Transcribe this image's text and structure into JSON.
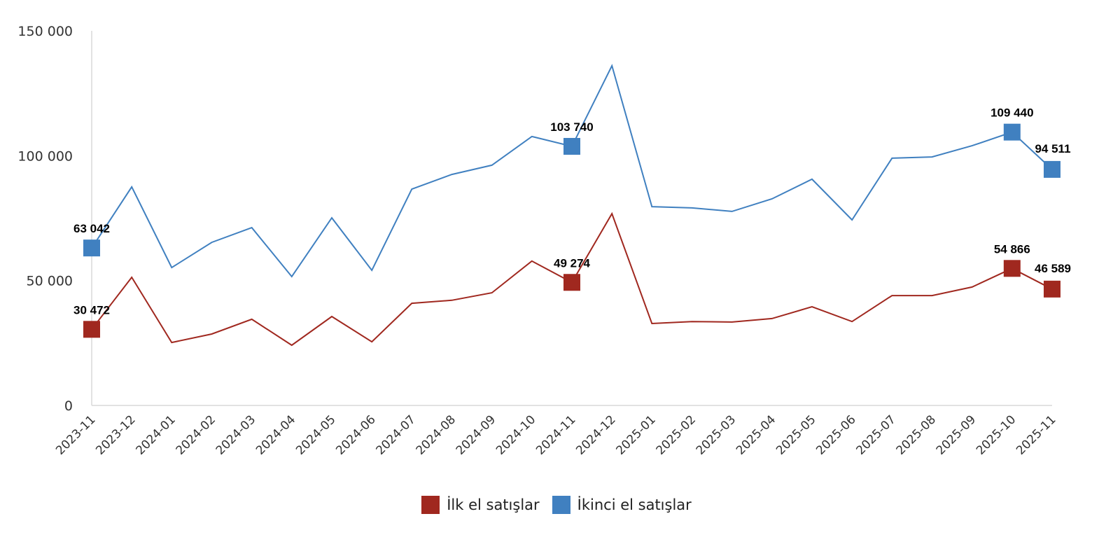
{
  "chart_data": {
    "type": "line",
    "title": "",
    "xlabel": "",
    "ylabel": "",
    "ylim": [
      0,
      150000
    ],
    "yticks": [
      0,
      50000,
      100000,
      150000
    ],
    "ytick_labels": [
      "0",
      "50 000",
      "100 000",
      "150 000"
    ],
    "grid": false,
    "legend_position": "bottom",
    "categories": [
      "2023-11",
      "2023-12",
      "2024-01",
      "2024-02",
      "2024-03",
      "2024-04",
      "2024-05",
      "2024-06",
      "2024-07",
      "2024-08",
      "2024-09",
      "2024-10",
      "2024-11",
      "2024-12",
      "2025-01",
      "2025-02",
      "2025-03",
      "2025-04",
      "2025-05",
      "2025-06",
      "2025-07",
      "2025-08",
      "2025-09",
      "2025-10",
      "2025-11"
    ],
    "series": [
      {
        "name": "İlk el satışlar",
        "color": "#a0281f",
        "values": [
          30472,
          51300,
          25200,
          28600,
          34500,
          24100,
          35600,
          25500,
          40900,
          42100,
          45100,
          57800,
          49274,
          76800,
          32800,
          33600,
          33400,
          34800,
          39500,
          33600,
          44000,
          44000,
          47400,
          54866,
          46589
        ],
        "labeled_points": [
          {
            "index": 0,
            "label": "30 472"
          },
          {
            "index": 12,
            "label": "49 274"
          },
          {
            "index": 23,
            "label": "54 866"
          },
          {
            "index": 24,
            "label": "46 589"
          }
        ]
      },
      {
        "name": "İkinci el satışlar",
        "color": "#4080c0",
        "values": [
          63042,
          87500,
          55200,
          65300,
          71200,
          51600,
          75100,
          54100,
          86600,
          92500,
          96200,
          107700,
          103740,
          136000,
          79600,
          79100,
          77700,
          82700,
          90600,
          74300,
          99000,
          99500,
          104000,
          109440,
          94511
        ],
        "labeled_points": [
          {
            "index": 0,
            "label": "63 042"
          },
          {
            "index": 12,
            "label": "103 740"
          },
          {
            "index": 23,
            "label": "109 440"
          },
          {
            "index": 24,
            "label": "94 511"
          }
        ]
      }
    ]
  },
  "legend": {
    "items": [
      {
        "label": "İlk el satışlar",
        "color": "#a0281f"
      },
      {
        "label": "İkinci el satışlar",
        "color": "#4080c0"
      }
    ]
  }
}
